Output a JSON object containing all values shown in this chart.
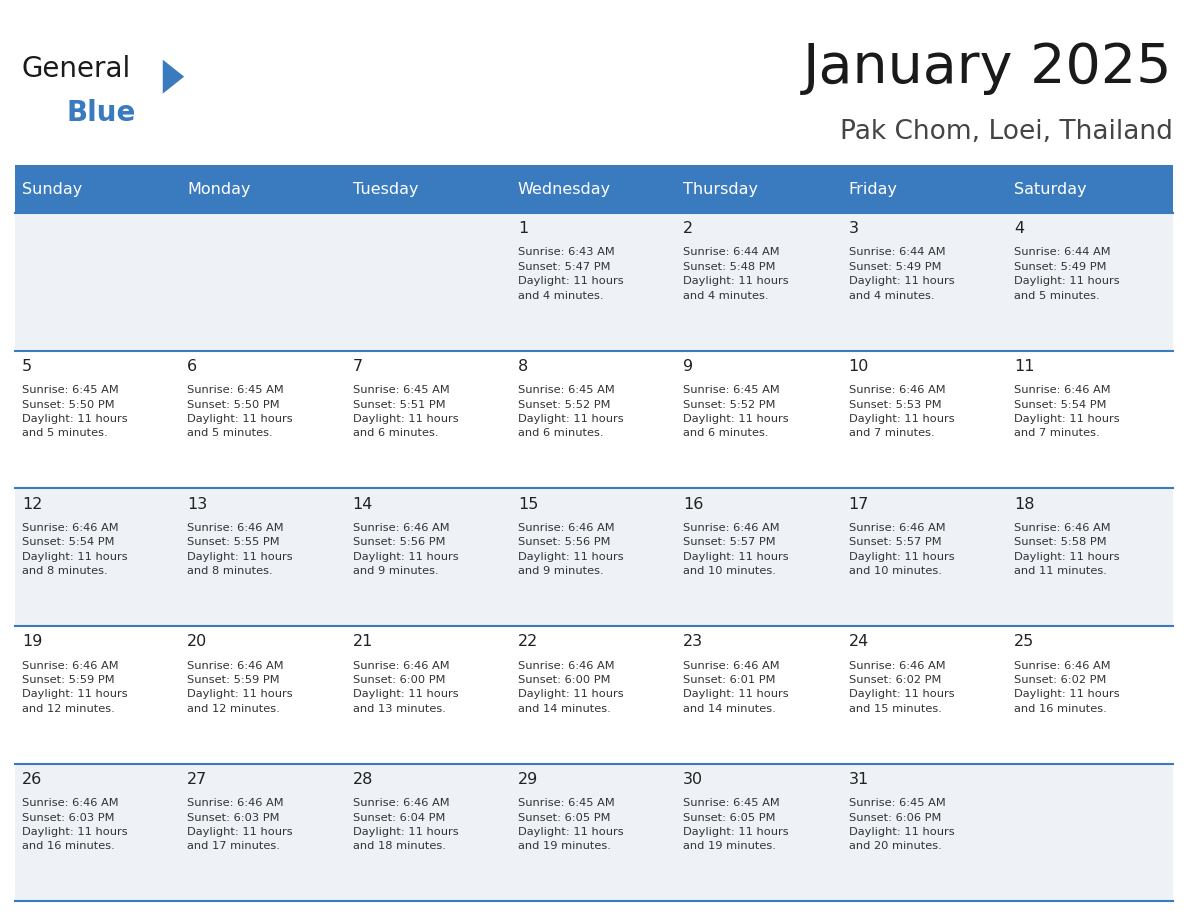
{
  "title": "January 2025",
  "subtitle": "Pak Chom, Loei, Thailand",
  "days_of_week": [
    "Sunday",
    "Monday",
    "Tuesday",
    "Wednesday",
    "Thursday",
    "Friday",
    "Saturday"
  ],
  "header_bg": "#3a7bbf",
  "header_text": "#ffffff",
  "row_bg_odd": "#eef2f7",
  "row_bg_even": "#ffffff",
  "cell_text_color": "#333333",
  "day_num_color": "#222222",
  "divider_color": "#3a7bbf",
  "calendar": [
    [
      {
        "day": "",
        "sunrise": "",
        "sunset": "",
        "daylight": ""
      },
      {
        "day": "",
        "sunrise": "",
        "sunset": "",
        "daylight": ""
      },
      {
        "day": "",
        "sunrise": "",
        "sunset": "",
        "daylight": ""
      },
      {
        "day": "1",
        "sunrise": "6:43 AM",
        "sunset": "5:47 PM",
        "daylight": "11 hours\nand 4 minutes."
      },
      {
        "day": "2",
        "sunrise": "6:44 AM",
        "sunset": "5:48 PM",
        "daylight": "11 hours\nand 4 minutes."
      },
      {
        "day": "3",
        "sunrise": "6:44 AM",
        "sunset": "5:49 PM",
        "daylight": "11 hours\nand 4 minutes."
      },
      {
        "day": "4",
        "sunrise": "6:44 AM",
        "sunset": "5:49 PM",
        "daylight": "11 hours\nand 5 minutes."
      }
    ],
    [
      {
        "day": "5",
        "sunrise": "6:45 AM",
        "sunset": "5:50 PM",
        "daylight": "11 hours\nand 5 minutes."
      },
      {
        "day": "6",
        "sunrise": "6:45 AM",
        "sunset": "5:50 PM",
        "daylight": "11 hours\nand 5 minutes."
      },
      {
        "day": "7",
        "sunrise": "6:45 AM",
        "sunset": "5:51 PM",
        "daylight": "11 hours\nand 6 minutes."
      },
      {
        "day": "8",
        "sunrise": "6:45 AM",
        "sunset": "5:52 PM",
        "daylight": "11 hours\nand 6 minutes."
      },
      {
        "day": "9",
        "sunrise": "6:45 AM",
        "sunset": "5:52 PM",
        "daylight": "11 hours\nand 6 minutes."
      },
      {
        "day": "10",
        "sunrise": "6:46 AM",
        "sunset": "5:53 PM",
        "daylight": "11 hours\nand 7 minutes."
      },
      {
        "day": "11",
        "sunrise": "6:46 AM",
        "sunset": "5:54 PM",
        "daylight": "11 hours\nand 7 minutes."
      }
    ],
    [
      {
        "day": "12",
        "sunrise": "6:46 AM",
        "sunset": "5:54 PM",
        "daylight": "11 hours\nand 8 minutes."
      },
      {
        "day": "13",
        "sunrise": "6:46 AM",
        "sunset": "5:55 PM",
        "daylight": "11 hours\nand 8 minutes."
      },
      {
        "day": "14",
        "sunrise": "6:46 AM",
        "sunset": "5:56 PM",
        "daylight": "11 hours\nand 9 minutes."
      },
      {
        "day": "15",
        "sunrise": "6:46 AM",
        "sunset": "5:56 PM",
        "daylight": "11 hours\nand 9 minutes."
      },
      {
        "day": "16",
        "sunrise": "6:46 AM",
        "sunset": "5:57 PM",
        "daylight": "11 hours\nand 10 minutes."
      },
      {
        "day": "17",
        "sunrise": "6:46 AM",
        "sunset": "5:57 PM",
        "daylight": "11 hours\nand 10 minutes."
      },
      {
        "day": "18",
        "sunrise": "6:46 AM",
        "sunset": "5:58 PM",
        "daylight": "11 hours\nand 11 minutes."
      }
    ],
    [
      {
        "day": "19",
        "sunrise": "6:46 AM",
        "sunset": "5:59 PM",
        "daylight": "11 hours\nand 12 minutes."
      },
      {
        "day": "20",
        "sunrise": "6:46 AM",
        "sunset": "5:59 PM",
        "daylight": "11 hours\nand 12 minutes."
      },
      {
        "day": "21",
        "sunrise": "6:46 AM",
        "sunset": "6:00 PM",
        "daylight": "11 hours\nand 13 minutes."
      },
      {
        "day": "22",
        "sunrise": "6:46 AM",
        "sunset": "6:00 PM",
        "daylight": "11 hours\nand 14 minutes."
      },
      {
        "day": "23",
        "sunrise": "6:46 AM",
        "sunset": "6:01 PM",
        "daylight": "11 hours\nand 14 minutes."
      },
      {
        "day": "24",
        "sunrise": "6:46 AM",
        "sunset": "6:02 PM",
        "daylight": "11 hours\nand 15 minutes."
      },
      {
        "day": "25",
        "sunrise": "6:46 AM",
        "sunset": "6:02 PM",
        "daylight": "11 hours\nand 16 minutes."
      }
    ],
    [
      {
        "day": "26",
        "sunrise": "6:46 AM",
        "sunset": "6:03 PM",
        "daylight": "11 hours\nand 16 minutes."
      },
      {
        "day": "27",
        "sunrise": "6:46 AM",
        "sunset": "6:03 PM",
        "daylight": "11 hours\nand 17 minutes."
      },
      {
        "day": "28",
        "sunrise": "6:46 AM",
        "sunset": "6:04 PM",
        "daylight": "11 hours\nand 18 minutes."
      },
      {
        "day": "29",
        "sunrise": "6:45 AM",
        "sunset": "6:05 PM",
        "daylight": "11 hours\nand 19 minutes."
      },
      {
        "day": "30",
        "sunrise": "6:45 AM",
        "sunset": "6:05 PM",
        "daylight": "11 hours\nand 19 minutes."
      },
      {
        "day": "31",
        "sunrise": "6:45 AM",
        "sunset": "6:06 PM",
        "daylight": "11 hours\nand 20 minutes."
      },
      {
        "day": "",
        "sunrise": "",
        "sunset": "",
        "daylight": ""
      }
    ]
  ],
  "logo_general_color": "#1a1a1a",
  "logo_blue_color": "#3a7bbf",
  "logo_triangle_color": "#3a7bbf"
}
